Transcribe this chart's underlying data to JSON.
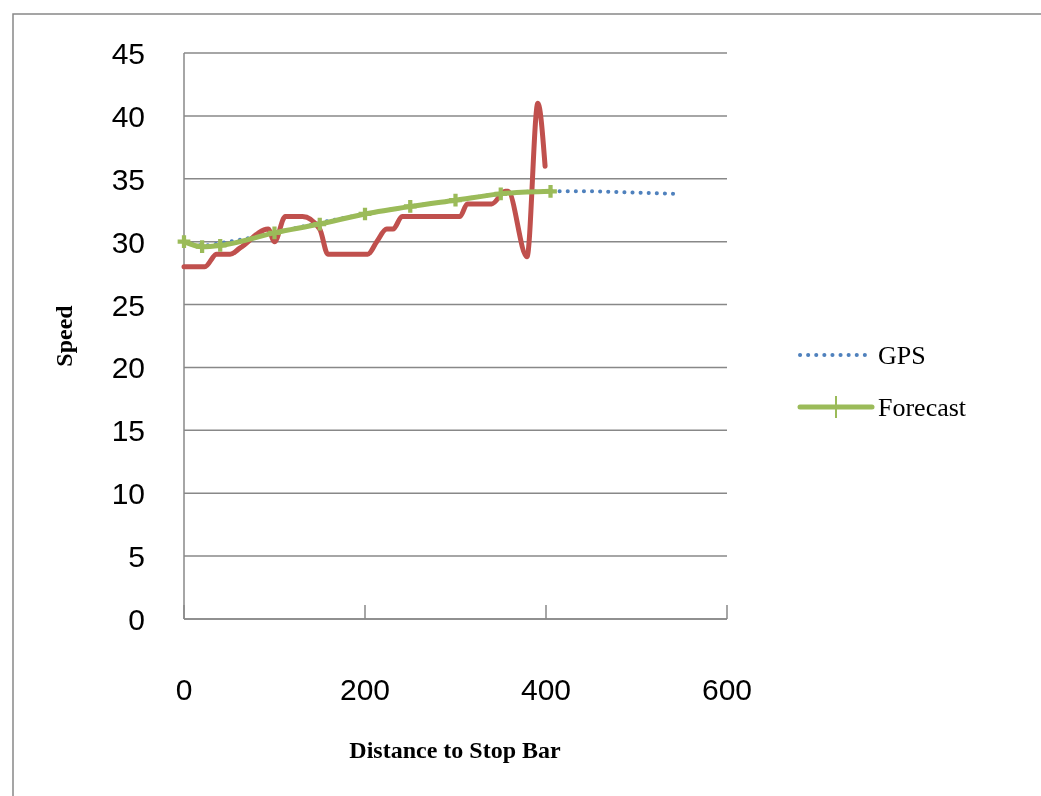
{
  "chart_data": {
    "type": "line",
    "xlabel": "Distance to Stop Bar",
    "ylabel": "Speed",
    "xlim": [
      0,
      600
    ],
    "xticks": [
      0,
      200,
      400,
      600
    ],
    "ylim": [
      0,
      45
    ],
    "yticks": [
      0,
      5,
      10,
      15,
      20,
      25,
      30,
      35,
      40,
      45
    ],
    "grid": "y",
    "legend": "right",
    "series": [
      {
        "name": "GPS",
        "color": "#4f81bd",
        "line_style": "dotted",
        "x": [
          0,
          20,
          50,
          100,
          150,
          200,
          250,
          300,
          350,
          400,
          450,
          500,
          545
        ],
        "values": [
          30,
          29.7,
          30,
          30.7,
          31.5,
          32.2,
          32.8,
          33.3,
          33.8,
          34,
          34,
          33.9,
          33.8
        ]
      },
      {
        "color": "#c0504d",
        "line_style": "solid",
        "x": [
          0,
          23,
          36,
          51,
          62,
          93,
          100,
          112,
          131,
          150,
          159,
          203,
          213,
          224,
          231,
          241,
          305,
          313,
          340,
          355,
          358,
          379,
          391,
          399
        ],
        "values": [
          28,
          28,
          29,
          29,
          29.5,
          31,
          30,
          32,
          32,
          31,
          29,
          29,
          30,
          31,
          31,
          32,
          32,
          33,
          33,
          34,
          34,
          28.8,
          41,
          36
        ]
      },
      {
        "name": "Forecast",
        "color": "#9bbb59",
        "line_style": "solid",
        "marker": "cross",
        "x": [
          0,
          20,
          40,
          100,
          150,
          200,
          250,
          300,
          350,
          405
        ],
        "values": [
          30,
          29.6,
          29.7,
          30.7,
          31.4,
          32.2,
          32.8,
          33.3,
          33.8,
          34
        ]
      }
    ]
  }
}
